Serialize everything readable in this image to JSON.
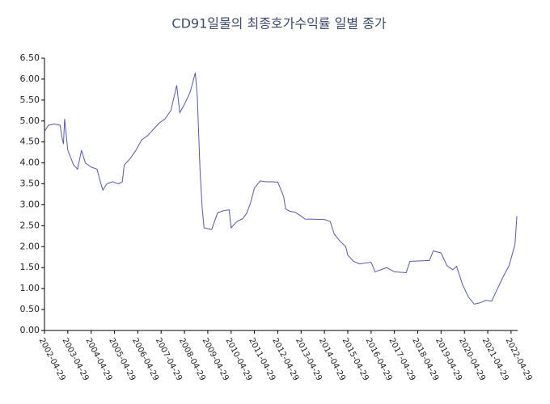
{
  "chart_data": {
    "type": "line",
    "title": "CD91일물의 최종호가수익률 일별 종가",
    "x": [
      "2002-04-29",
      "2002-06-29",
      "2002-09-29",
      "2002-12-29",
      "2003-01-29",
      "2003-02-20",
      "2003-03-10",
      "2003-04-29",
      "2003-07-29",
      "2003-09-29",
      "2003-11-29",
      "2004-01-29",
      "2004-04-29",
      "2004-07-29",
      "2004-09-29",
      "2004-10-29",
      "2004-12-29",
      "2005-03-29",
      "2005-06-29",
      "2005-08-29",
      "2005-09-29",
      "2005-12-29",
      "2006-03-29",
      "2006-06-29",
      "2006-09-29",
      "2006-12-29",
      "2007-03-29",
      "2007-06-29",
      "2007-09-29",
      "2007-12-29",
      "2008-02-15",
      "2008-04-29",
      "2008-07-29",
      "2008-10-15",
      "2008-11-15",
      "2008-12-29",
      "2009-02-01",
      "2009-03-01",
      "2009-06-29",
      "2009-09-29",
      "2009-12-29",
      "2010-03-29",
      "2010-04-29",
      "2010-07-29",
      "2010-10-29",
      "2010-12-29",
      "2011-02-28",
      "2011-04-29",
      "2011-07-29",
      "2011-10-29",
      "2012-01-29",
      "2012-04-29",
      "2012-07-29",
      "2012-08-29",
      "2012-10-29",
      "2013-01-29",
      "2013-04-29",
      "2013-06-29",
      "2014-04-29",
      "2014-07-29",
      "2014-09-29",
      "2014-12-29",
      "2015-03-29",
      "2015-04-29",
      "2015-07-29",
      "2015-10-29",
      "2016-04-29",
      "2016-06-29",
      "2016-12-29",
      "2017-04-29",
      "2017-10-29",
      "2017-12-29",
      "2018-10-29",
      "2018-12-29",
      "2019-04-29",
      "2019-07-29",
      "2019-10-29",
      "2019-12-29",
      "2020-03-29",
      "2020-06-29",
      "2020-09-29",
      "2020-12-29",
      "2021-03-29",
      "2021-06-29",
      "2021-09-29",
      "2021-12-29",
      "2022-03-29",
      "2022-06-29",
      "2022-07-29"
    ],
    "series": [
      {
        "color": "#5558a8",
        "values": [
          4.75,
          4.9,
          4.93,
          4.9,
          4.6,
          4.45,
          5.05,
          4.3,
          3.95,
          3.85,
          4.3,
          4.0,
          3.9,
          3.85,
          3.5,
          3.35,
          3.5,
          3.55,
          3.5,
          3.55,
          3.95,
          4.1,
          4.3,
          4.55,
          4.65,
          4.8,
          4.95,
          5.05,
          5.25,
          5.85,
          5.2,
          5.4,
          5.7,
          6.15,
          5.6,
          3.8,
          2.9,
          2.45,
          2.41,
          2.81,
          2.86,
          2.88,
          2.45,
          2.6,
          2.67,
          2.8,
          3.05,
          3.4,
          3.57,
          3.55,
          3.55,
          3.54,
          3.2,
          2.9,
          2.85,
          2.82,
          2.73,
          2.66,
          2.65,
          2.6,
          2.3,
          2.13,
          2.0,
          1.8,
          1.65,
          1.59,
          1.63,
          1.4,
          1.5,
          1.4,
          1.38,
          1.65,
          1.67,
          1.9,
          1.85,
          1.55,
          1.45,
          1.53,
          1.1,
          0.8,
          0.63,
          0.66,
          0.72,
          0.7,
          1.0,
          1.29,
          1.55,
          2.05,
          2.73
        ]
      }
    ],
    "xlim": [
      "2002-04-29",
      "2022-08-10"
    ],
    "xticks": [
      "2002-04-29",
      "2003-04-29",
      "2004-04-29",
      "2005-04-29",
      "2006-04-29",
      "2007-04-29",
      "2008-04-29",
      "2009-04-29",
      "2010-04-29",
      "2011-04-29",
      "2012-04-29",
      "2013-04-29",
      "2014-04-29",
      "2015-04-29",
      "2016-04-29",
      "2017-04-29",
      "2018-04-29",
      "2019-04-29",
      "2020-04-29",
      "2021-04-29",
      "2022-04-29"
    ],
    "ylim": [
      0,
      6.5
    ],
    "yticks": [
      {
        "value": 0,
        "label": "0.00"
      },
      {
        "value": 0.5,
        "label": "0.50"
      },
      {
        "value": 1,
        "label": "1.00"
      },
      {
        "value": 1.5,
        "label": "1.50"
      },
      {
        "value": 2,
        "label": "2.00"
      },
      {
        "value": 2.5,
        "label": "2.50"
      },
      {
        "value": 3,
        "label": "3.00"
      },
      {
        "value": 3.5,
        "label": "3.50"
      },
      {
        "value": 4,
        "label": "4.00"
      },
      {
        "value": 4.5,
        "label": "4.50"
      },
      {
        "value": 5,
        "label": "5.00"
      },
      {
        "value": 5.5,
        "label": "5.50"
      },
      {
        "value": 6,
        "label": "6.00"
      },
      {
        "value": 6.5,
        "label": "6.50"
      }
    ],
    "grid": false
  }
}
